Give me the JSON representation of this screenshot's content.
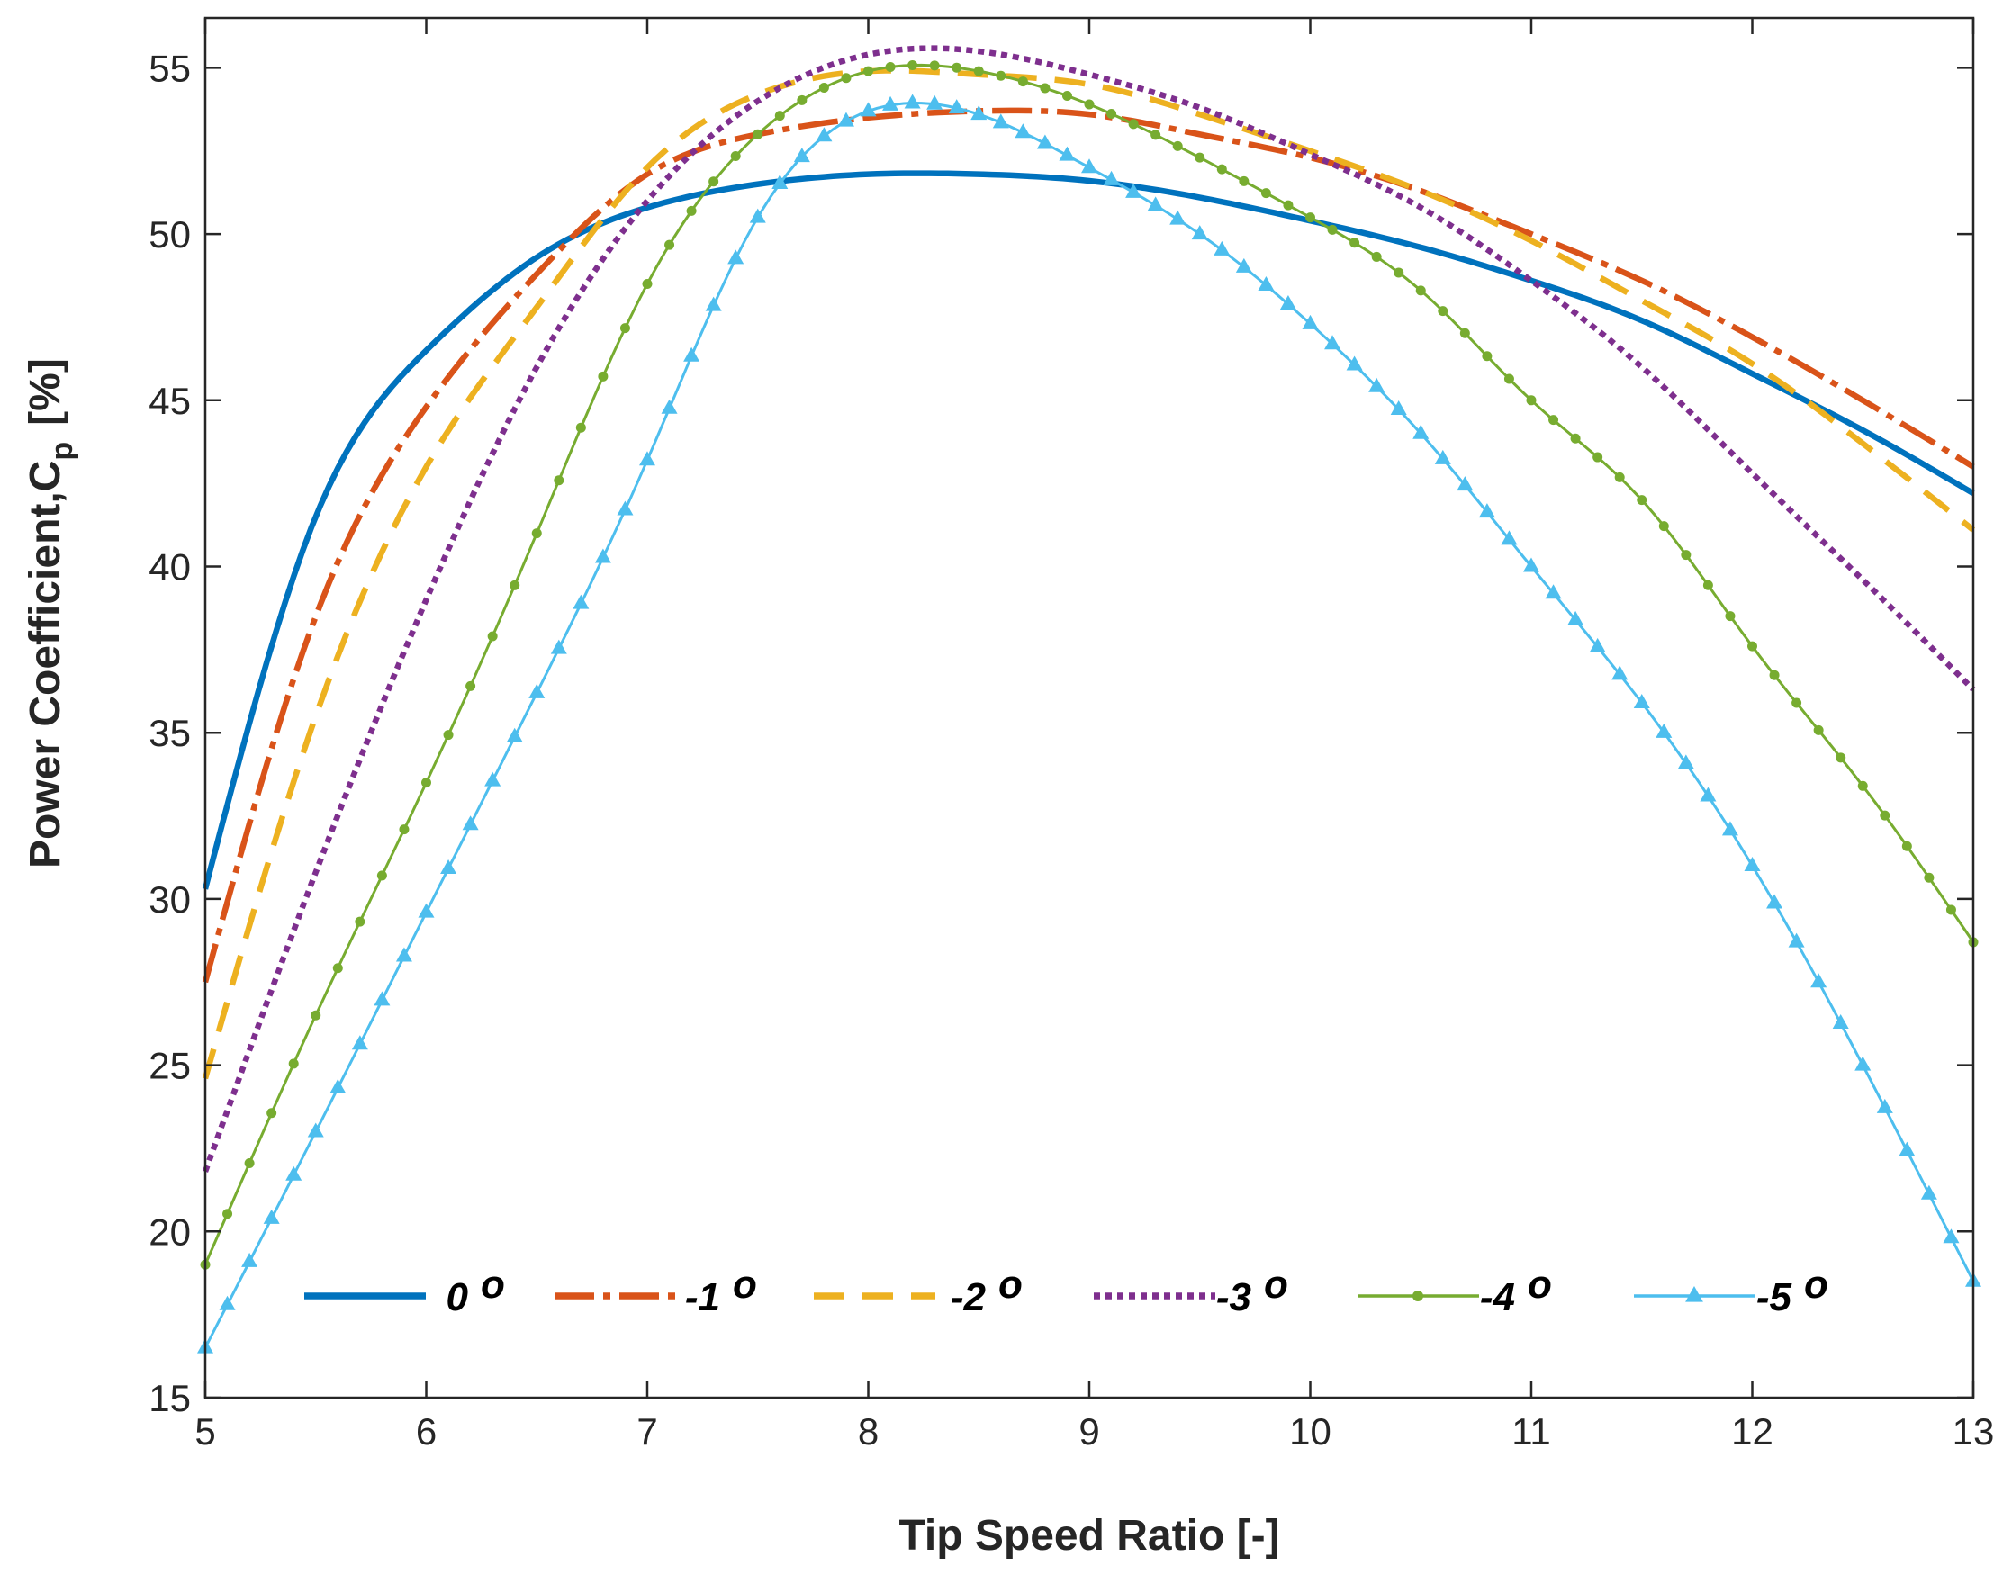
{
  "chart_data": {
    "type": "line",
    "title": "",
    "xlabel": "Tip Speed Ratio [-]",
    "ylabel": "Power Coefficient,C",
    "ylabel_subscript": "p",
    "ylabel_unit": "[%]",
    "xlim": [
      5,
      13
    ],
    "ylim": [
      15,
      56.5
    ],
    "xticks": [
      5,
      6,
      7,
      8,
      9,
      10,
      11,
      12,
      13
    ],
    "yticks": [
      15,
      20,
      25,
      30,
      35,
      40,
      45,
      50,
      55
    ],
    "grid": false,
    "legend_position": "bottom",
    "x": [
      5,
      5.5,
      6,
      6.5,
      7,
      7.5,
      8,
      8.5,
      9,
      9.5,
      10,
      10.5,
      11,
      11.5,
      12,
      12.5,
      13
    ],
    "series": [
      {
        "name": "0 °",
        "label": "0",
        "unit": "o",
        "color": "#0072BD",
        "style": "solid",
        "marker": "none",
        "values": [
          30.3,
          41.5,
          46.5,
          49.3,
          50.8,
          51.5,
          51.8,
          51.8,
          51.6,
          51.1,
          50.4,
          49.6,
          48.6,
          47.4,
          45.8,
          44.1,
          42.2
        ]
      },
      {
        "name": "-1 °",
        "label": "-1",
        "unit": "o",
        "color": "#D95319",
        "style": "dashdot",
        "marker": "none",
        "values": [
          27.5,
          38.5,
          44.8,
          48.8,
          51.8,
          53.0,
          53.5,
          53.7,
          53.6,
          53.0,
          52.3,
          51.3,
          50.0,
          48.6,
          46.9,
          45.0,
          43.0
        ]
      },
      {
        "name": "-2 °",
        "label": "-2",
        "unit": "o",
        "color": "#EDB120",
        "style": "dashed",
        "marker": "none",
        "values": [
          24.6,
          35.5,
          43.0,
          47.8,
          52.0,
          54.2,
          54.9,
          54.8,
          54.5,
          53.6,
          52.5,
          51.3,
          49.8,
          48.0,
          46.1,
          43.7,
          41.1
        ]
      },
      {
        "name": "-3 °",
        "label": "-3",
        "unit": "o",
        "color": "#7E2F8E",
        "style": "dotted",
        "marker": "none",
        "values": [
          21.8,
          30.8,
          39.0,
          46.0,
          51.0,
          54.0,
          55.4,
          55.5,
          54.8,
          53.8,
          52.4,
          50.8,
          48.6,
          46.0,
          42.8,
          39.6,
          36.3
        ]
      },
      {
        "name": "-4 °",
        "label": "-4",
        "unit": "o",
        "color": "#77AC30",
        "style": "solid",
        "marker": "dot",
        "values": [
          19.0,
          26.5,
          33.5,
          41.0,
          48.5,
          53.0,
          54.9,
          54.9,
          53.9,
          52.3,
          50.5,
          48.3,
          45.0,
          42.0,
          37.6,
          33.4,
          28.7
        ]
      },
      {
        "name": "-5 °",
        "label": "-5",
        "unit": "o",
        "color": "#4DBEEE",
        "style": "solid",
        "marker": "triangle",
        "values": [
          16.5,
          23.0,
          29.6,
          36.2,
          43.2,
          50.5,
          53.7,
          53.6,
          52.0,
          50.0,
          47.3,
          44.0,
          40.0,
          35.9,
          31.0,
          25.0,
          18.5
        ]
      }
    ]
  }
}
